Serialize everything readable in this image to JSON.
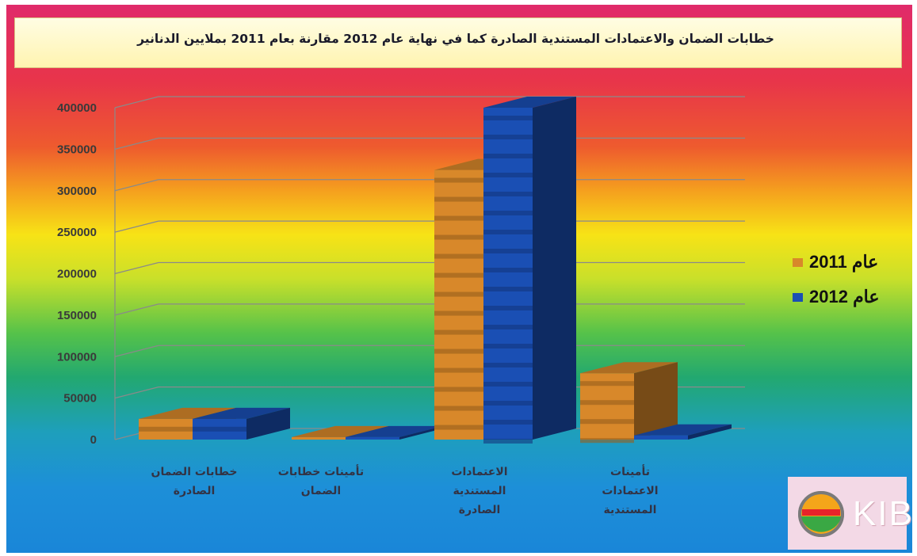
{
  "chart_data": {
    "type": "bar",
    "title": "خطابات الضمان والاعتمادات المستندية الصادرة كما في نهاية عام 2012 مقارنة بعام 2011 بملايين الدنانير",
    "categories": [
      [
        "خطابات الضمان",
        "الصادرة"
      ],
      [
        "تأمينات خطابات",
        "الضمان"
      ],
      [
        "الاعتمادات",
        "المستندية",
        "الصادرة"
      ],
      [
        "تأمينات",
        "الاعتمادات",
        "المستندية"
      ]
    ],
    "series": [
      {
        "name": "عام 2011",
        "color": "#d8882a",
        "values": [
          25000,
          3000,
          325000,
          80000
        ]
      },
      {
        "name": "عام 2012",
        "color": "#1a4fb4",
        "values": [
          25000,
          3000,
          400000,
          5000
        ]
      }
    ],
    "ylim": [
      0,
      400000
    ],
    "yticks": [
      "400000",
      "350000",
      "300000",
      "250000",
      "200000",
      "150000",
      "100000",
      "50000",
      "0"
    ],
    "grid": true,
    "legend_position": "right"
  },
  "logo": {
    "text": "KIB"
  }
}
